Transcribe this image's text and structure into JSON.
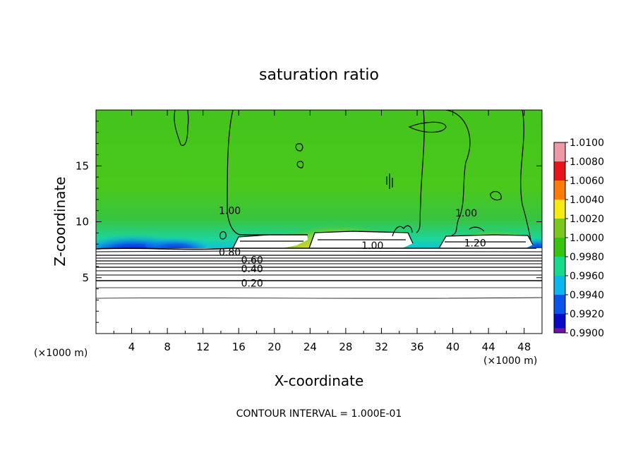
{
  "chart_data": {
    "type": "heatmap",
    "title": "saturation ratio",
    "xlabel": "X-coordinate",
    "ylabel": "Z-coordinate",
    "x_unit_left": "(×1000 m)",
    "x_unit_right": "(×1000 m)",
    "xlim": [
      0,
      50
    ],
    "ylim": [
      0,
      20
    ],
    "x_ticks": [
      4,
      8,
      12,
      16,
      20,
      24,
      28,
      32,
      36,
      40,
      44,
      48
    ],
    "y_ticks": [
      5,
      10,
      15
    ],
    "colorbar": {
      "ticks": [
        "1.0100",
        "1.0080",
        "1.0060",
        "1.0040",
        "1.0020",
        "1.0000",
        "0.9980",
        "0.9960",
        "0.9940",
        "0.9920",
        "0.9900"
      ],
      "colors": [
        "#ee9aa4",
        "#e8141a",
        "#fc7c06",
        "#f6ea10",
        "#7ac81e",
        "#38c40e",
        "#16dc8a",
        "#0ab8ee",
        "#0a54ec",
        "#0c08c8",
        "#6e14a4"
      ]
    },
    "contour_interval_text": "CONTOUR INTERVAL = 1.000E-01",
    "contour_labels": [
      {
        "text": "1.00",
        "x": 15.0,
        "z": 11.0
      },
      {
        "text": "1.00",
        "x": 31.0,
        "z": 7.9
      },
      {
        "text": "1.00",
        "x": 41.5,
        "z": 10.8
      },
      {
        "text": "1.20",
        "x": 42.5,
        "z": 8.1
      },
      {
        "text": "0.80",
        "x": 15.0,
        "z": 7.3
      },
      {
        "text": "0.60",
        "x": 17.5,
        "z": 6.6
      },
      {
        "text": "0.40",
        "x": 17.5,
        "z": 5.8
      },
      {
        "text": "0.20",
        "x": 17.5,
        "z": 4.5
      }
    ]
  }
}
